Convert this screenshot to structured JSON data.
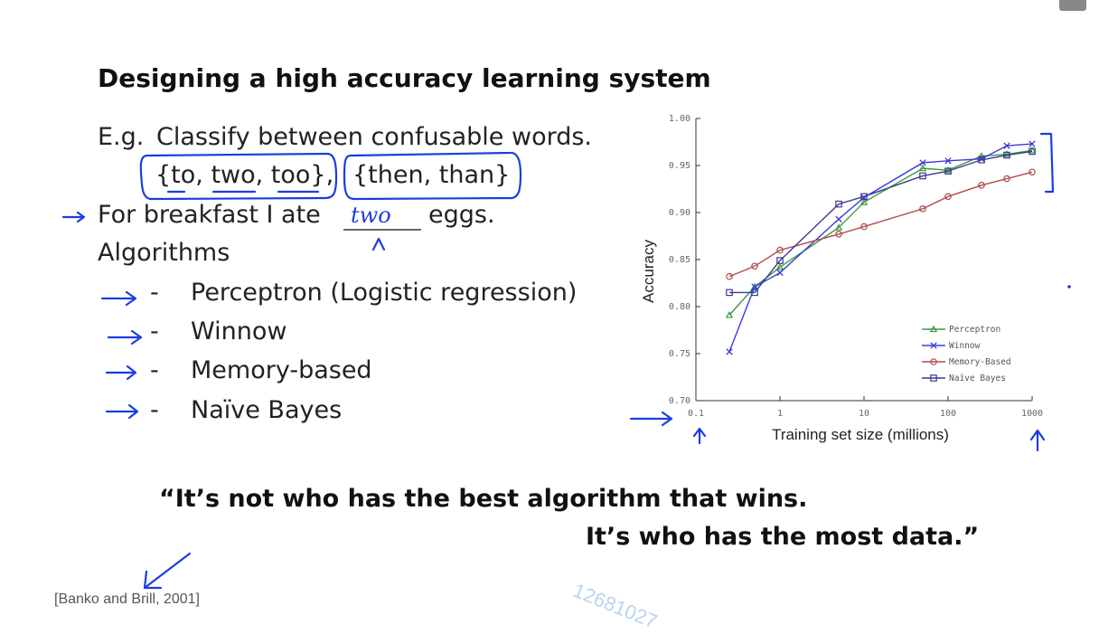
{
  "slide": {
    "title": "Designing a high accuracy learning system",
    "eg_label": "E.g.",
    "eg_text": "Classify between confusable words.",
    "set1": "{to, two, too},",
    "set2": "{then, than}",
    "sentence_start": "For breakfast I ate",
    "sentence_end": "eggs.",
    "handwritten_answer": "two",
    "algorithms_heading": "Algorithms",
    "algorithms": [
      "Perceptron (Logistic regression)",
      "Winnow",
      "Memory-based",
      "Naïve Bayes"
    ],
    "quote_line1": "“It’s not who has the best algorithm that wins.",
    "quote_line2": "It’s who has the most data.”",
    "citation": "[Banko and Brill, 2001]",
    "watermark": "12681027",
    "ink_color": "#1a3ee0"
  },
  "chart_data": {
    "type": "line",
    "xscale": "log",
    "xlabel": "Training set size (millions)",
    "ylabel": "Accuracy",
    "xlim": [
      0.1,
      1000
    ],
    "ylim": [
      0.7,
      1.0
    ],
    "xticks": [
      "0.1",
      "1",
      "10",
      "100",
      "1000"
    ],
    "yticks": [
      "0.70",
      "0.75",
      "0.80",
      "0.85",
      "0.90",
      "0.95",
      "1.00"
    ],
    "grid": false,
    "legend": "lower-right",
    "x": [
      0.25,
      0.5,
      1,
      5,
      10,
      50,
      100,
      250,
      500,
      1000
    ],
    "series": [
      {
        "name": "Perceptron",
        "color": "#3f9a3f",
        "marker": "triangle",
        "values": [
          0.791,
          0.821,
          0.842,
          0.884,
          0.911,
          0.947,
          0.945,
          0.96,
          0.962,
          0.966
        ]
      },
      {
        "name": "Winnow",
        "color": "#3a3ae0",
        "marker": "x",
        "values": [
          0.752,
          0.821,
          0.836,
          0.893,
          0.916,
          0.953,
          0.955,
          0.957,
          0.971,
          0.973
        ]
      },
      {
        "name": "Memory-Based",
        "color": "#b04a4a",
        "marker": "circle",
        "values": [
          0.832,
          0.843,
          0.86,
          0.877,
          0.885,
          0.904,
          0.917,
          0.929,
          0.936,
          0.943
        ]
      },
      {
        "name": "Naïve Bayes",
        "color": "#3a3a90",
        "marker": "square",
        "values": [
          0.815,
          0.815,
          0.849,
          0.909,
          0.917,
          0.939,
          0.944,
          0.956,
          0.961,
          0.965
        ]
      }
    ]
  }
}
